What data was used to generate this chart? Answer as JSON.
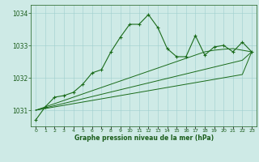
{
  "x": [
    0,
    1,
    2,
    3,
    4,
    5,
    6,
    7,
    8,
    9,
    10,
    11,
    12,
    13,
    14,
    15,
    16,
    17,
    18,
    19,
    20,
    21,
    22,
    23
  ],
  "y_main": [
    1030.7,
    1031.1,
    1031.4,
    1031.45,
    1031.55,
    1031.8,
    1032.15,
    1032.25,
    1032.8,
    1033.25,
    1033.65,
    1033.65,
    1033.95,
    1033.55,
    1032.9,
    1032.65,
    1032.65,
    1033.3,
    1032.7,
    1032.95,
    1033.0,
    1032.8,
    1033.1,
    1032.8
  ],
  "y_line1": [
    1031.0,
    1031.05,
    1031.1,
    1031.15,
    1031.2,
    1031.25,
    1031.3,
    1031.35,
    1031.4,
    1031.45,
    1031.5,
    1031.55,
    1031.6,
    1031.65,
    1031.7,
    1031.75,
    1031.8,
    1031.85,
    1031.9,
    1031.95,
    1032.0,
    1032.05,
    1032.1,
    1032.8
  ],
  "y_line2": [
    1031.0,
    1031.07,
    1031.14,
    1031.21,
    1031.28,
    1031.35,
    1031.42,
    1031.49,
    1031.56,
    1031.63,
    1031.7,
    1031.77,
    1031.84,
    1031.91,
    1031.98,
    1032.05,
    1032.12,
    1032.19,
    1032.26,
    1032.33,
    1032.4,
    1032.47,
    1032.54,
    1032.8
  ],
  "y_line3": [
    1031.0,
    1031.1,
    1031.2,
    1031.3,
    1031.4,
    1031.5,
    1031.6,
    1031.7,
    1031.8,
    1031.9,
    1032.0,
    1032.1,
    1032.2,
    1032.3,
    1032.4,
    1032.5,
    1032.6,
    1032.7,
    1032.8,
    1032.85,
    1032.88,
    1032.9,
    1032.85,
    1032.8
  ],
  "line_color": "#1a6b1a",
  "bg_color": "#ceeae6",
  "grid_color": "#9ecece",
  "text_color": "#1a5c1a",
  "xlabel": "Graphe pression niveau de la mer (hPa)",
  "ylim": [
    1030.5,
    1034.25
  ],
  "yticks": [
    1031,
    1032,
    1033,
    1034
  ],
  "figwidth": 3.2,
  "figheight": 2.0,
  "dpi": 100
}
